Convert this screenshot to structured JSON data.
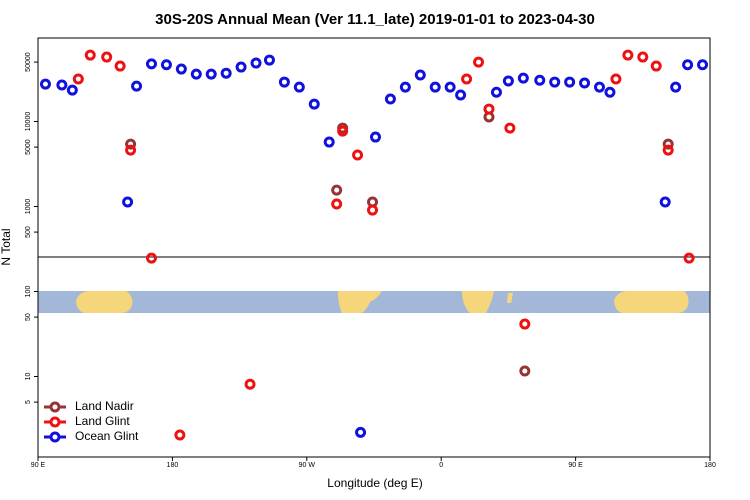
{
  "chart_data": {
    "type": "scatter",
    "title": "30S-20S Annual Mean (Ver 11.1_late)   2019-01-01 to 2023-04-30",
    "xlabel": "Longitude (deg E)",
    "ylabel": "N Total",
    "xlim": [
      -270,
      180
    ],
    "xticks": [
      {
        "value": -270,
        "label": "90 E"
      },
      {
        "value": -180,
        "label": "180"
      },
      {
        "value": -90,
        "label": "90 W"
      },
      0,
      {
        "value": 90,
        "label": "90 E"
      },
      {
        "value": 180,
        "label": "180"
      }
    ],
    "ylim": [
      1.13,
      96000
    ],
    "ylog": true,
    "yticks": [
      5,
      10,
      50,
      100,
      500,
      1000,
      5000,
      10000,
      50000
    ],
    "legend": "bottom-left",
    "series": [
      {
        "name": "Land Nadir",
        "color": "#993333",
        "x": [
          -208,
          -70,
          -66,
          -46,
          32,
          56,
          152
        ],
        "values": [
          5420,
          1560,
          8370,
          1130,
          11300,
          11.6,
          5420
        ]
      },
      {
        "name": "Land Glint",
        "color": "#ee1111",
        "x": [
          -243,
          -235,
          -224,
          -215,
          -208,
          -194,
          -175,
          -128,
          -70,
          -66,
          -56,
          -46,
          17,
          25,
          32,
          46,
          56,
          117,
          125,
          135,
          144,
          152,
          166
        ],
        "values": [
          31600,
          60400,
          57300,
          44900,
          4610,
          247,
          2.05,
          8.1,
          1070,
          7710,
          4030,
          908,
          31600,
          50000,
          14000,
          8370,
          41.4,
          31600,
          60400,
          57300,
          44900,
          4610,
          247
        ]
      },
      {
        "name": "Ocean Glint",
        "color": "#1111dd",
        "x": [
          -265,
          -254,
          -247,
          -210,
          -204,
          -194,
          -184,
          -174,
          -164,
          -154,
          -144,
          -134,
          -124,
          -115,
          -105,
          -95,
          -85,
          -75,
          -54,
          -44,
          -34,
          -24,
          -14,
          -4,
          6,
          13,
          37,
          45,
          55,
          66,
          76,
          86,
          96,
          106,
          113,
          150,
          157,
          165,
          175
        ],
        "values": [
          27500,
          26900,
          23400,
          1130,
          26100,
          47600,
          46500,
          41400,
          36100,
          36100,
          37000,
          43700,
          48700,
          52800,
          29100,
          25400,
          16000,
          5730,
          2.2,
          6560,
          18400,
          25400,
          35200,
          25400,
          25400,
          20500,
          22100,
          30000,
          32400,
          30600,
          29100,
          29100,
          28400,
          25400,
          22100,
          1130,
          25400,
          46500,
          46500
        ]
      }
    ]
  }
}
